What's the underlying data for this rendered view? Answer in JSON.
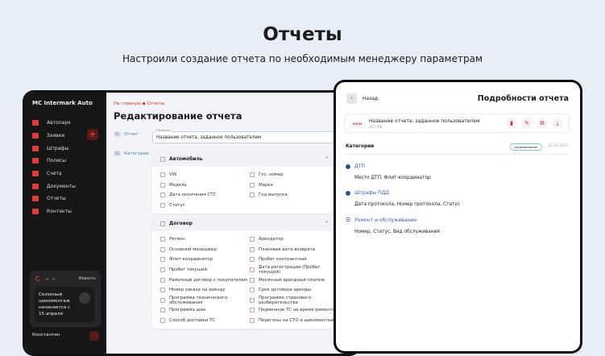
{
  "header": {
    "title": "Отчеты",
    "subtitle": "Настроили создание отчета по необходимым менеджеру параметрам"
  },
  "sidebar": {
    "brand": "MC Intermark Auto",
    "items": [
      "Автопарк",
      "Заявки",
      "Штрафы",
      "Полисы",
      "Счета",
      "Документы",
      "Отчеты",
      "Контакты"
    ],
    "news_label": "Новость",
    "news_text": "Сезонный шиномонтаж начинается с 15 апреля",
    "user": "Константин"
  },
  "editor": {
    "breadcrumb": [
      "На главную",
      "Отчеты"
    ],
    "title": "Редактирование отчета",
    "steps": [
      {
        "num": "01",
        "label": "Отчет"
      },
      {
        "num": "02",
        "label": "Категории"
      }
    ],
    "name_label": "Название",
    "name_value": "Название отчета, заданное пользователем",
    "sections": [
      {
        "title": "Автомобиль",
        "options": [
          "VIN",
          "Гос. номер",
          "Модель",
          "Марка",
          "Дата окончания СТС",
          "Год выпуска",
          "Статус"
        ]
      },
      {
        "title": "Договор",
        "options": [
          "Регион",
          "Арендатор",
          "Основной менеджер",
          "Плановая дата возврата",
          "Флит-координатор",
          "Пробег контрактный",
          "Пробег текущий",
          "Дата регистрации (Пробег текущий)",
          "Рамочный договор с покупателем",
          "Месячный арендный платеж",
          "Номер заказа на аренду",
          "Срок договора аренды",
          "Программа технического обслуживания",
          "Программа страхового разбирательства",
          "Программа шин",
          "Подменное ТС на время ремонта",
          "Способ доставки ТС",
          "Перегоны на СТО и шиномонтаж"
        ]
      }
    ]
  },
  "details": {
    "back": "Назад",
    "title": "Подробности отчета",
    "file_type": "EXCEL",
    "file_name": "Название отчета, заданное пользователем",
    "file_size": "20,5 МБ",
    "categories_label": "Категории",
    "status": "сформировано",
    "date": "20.10.2021",
    "sections": [
      {
        "title": "ДТП",
        "fields": "Место ДТП, Флит-координатор",
        "icon": "alert-circle-icon"
      },
      {
        "title": "Штрафы ПДД",
        "fields": "Дата протокола, Номер протокола, Статус",
        "icon": "alert-circle-icon"
      },
      {
        "title": "Ремонт и обслуживание",
        "fields": "Номер, Статус, Вид обслуживания",
        "icon": "list-icon"
      }
    ]
  },
  "colors": {
    "accent": "#d32f2f",
    "link": "#3a5ca8",
    "background": "#e7eef7"
  }
}
